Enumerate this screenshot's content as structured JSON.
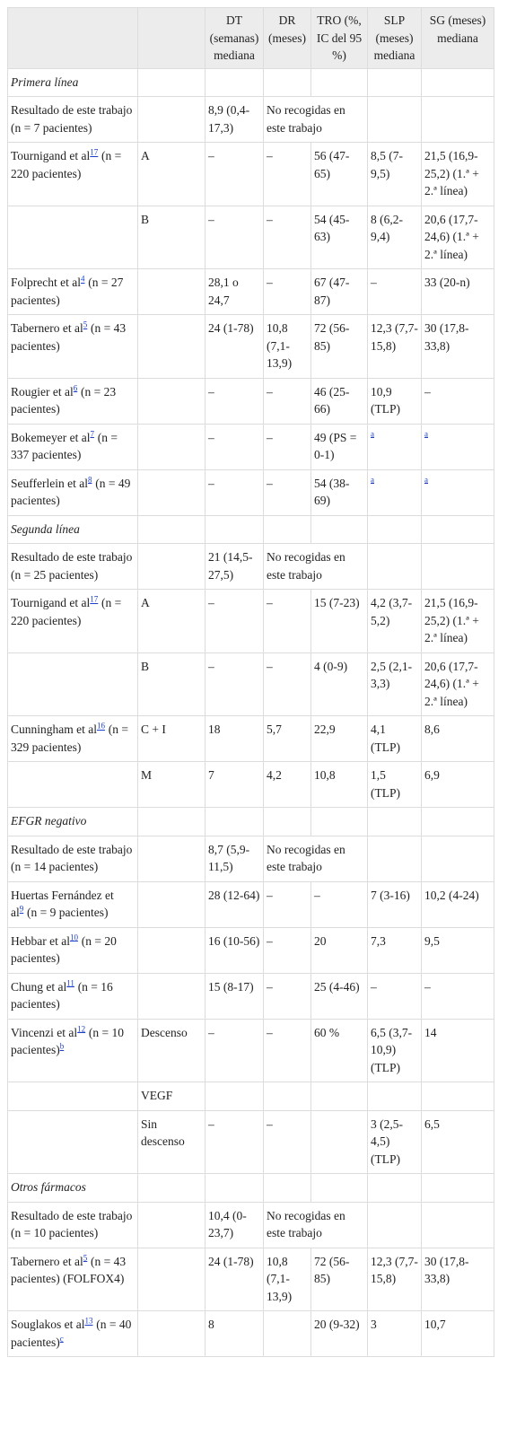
{
  "header": {
    "cols": [
      "DT (semanas) mediana",
      "DR (meses)",
      "TRO (%, IC del 95 %)",
      "SLP (meses) mediana",
      "SG (meses) mediana"
    ]
  },
  "rows": [
    {
      "section": "Primera línea"
    },
    {
      "study": "Resultado de este trabajo (n = 7 pacientes)",
      "dt": "8,9 (0,4-17,3)",
      "note": "No recogidas en este trabajo"
    },
    {
      "study": {
        "name": "Tournigand et al",
        "ref": "17",
        "detail": "(n = 220 pacientes)"
      },
      "arm": "A",
      "dt": "–",
      "dr": "–",
      "tro": "56 (47-65)",
      "slp": "8,5 (7-9,5)",
      "sg": "21,5 (16,9-25,2) (1.ª + 2.ª línea)"
    },
    {
      "arm": "B",
      "dt": "–",
      "dr": "–",
      "tro": "54 (45-63)",
      "slp": "8 (6,2-9,4)",
      "sg": "20,6 (17,7-24,6) (1.ª + 2.ª línea)"
    },
    {
      "study": {
        "name": "Folprecht et al",
        "ref": "4",
        "detail": "(n = 27 pacientes)"
      },
      "dt": "28,1 o 24,7",
      "dr": "–",
      "tro": "67 (47-87)",
      "slp": "–",
      "sg": "33 (20-n)"
    },
    {
      "study": {
        "name": "Tabernero et al",
        "ref": "5",
        "detail": "(n = 43 pacientes)"
      },
      "dt": "24 (1-78)",
      "dr": "10,8 (7,1-13,9)",
      "tro": "72 (56-85)",
      "slp": "12,3 (7,7-15,8)",
      "sg": "30 (17,8-33,8)"
    },
    {
      "study": {
        "name": "Rougier et al",
        "ref": "6",
        "detail": "(n = 23 pacientes)"
      },
      "dt": "–",
      "dr": "–",
      "tro": "46 (25-66)",
      "slp": "10,9 (TLP)",
      "sg": "–"
    },
    {
      "study": {
        "name": "Bokemeyer et al",
        "ref": "7",
        "detail": "(n = 337 pacientes)"
      },
      "dt": "–",
      "dr": "–",
      "tro": "49 (PS = 0-1)",
      "slp": {
        "ref": "a"
      },
      "sg": {
        "ref": "a"
      }
    },
    {
      "study": {
        "name": "Seufferlein et al",
        "ref": "8",
        "detail": "(n = 49 pacientes)"
      },
      "dt": "–",
      "dr": "–",
      "tro": "54 (38-69)",
      "slp": {
        "ref": "a"
      },
      "sg": {
        "ref": "a"
      }
    },
    {
      "section": "Segunda línea"
    },
    {
      "study": "Resultado de este trabajo (n = 25 pacientes)",
      "dt": "21 (14,5-27,5)",
      "note": "No recogidas en este trabajo"
    },
    {
      "study": {
        "name": "Tournigand et al",
        "ref": "17",
        "detail": "(n = 220 pacientes)"
      },
      "arm": "A",
      "dt": "–",
      "dr": "–",
      "tro": "15 (7-23)",
      "slp": "4,2 (3,7-5,2)",
      "sg": "21,5 (16,9-25,2) (1.ª + 2.ª línea)"
    },
    {
      "arm": "B",
      "dt": "–",
      "dr": "–",
      "tro": "4 (0-9)",
      "slp": "2,5 (2,1-3,3)",
      "sg": "20,6 (17,7-24,6) (1.ª + 2.ª línea)"
    },
    {
      "study": {
        "name": "Cunningham et al",
        "ref": "16",
        "detail": "(n = 329 pacientes)"
      },
      "arm": "C + I",
      "dt": "18",
      "dr": "5,7",
      "tro": "22,9",
      "slp": "4,1 (TLP)",
      "sg": "8,6"
    },
    {
      "arm": "M",
      "dt": "7",
      "dr": "4,2",
      "tro": "10,8",
      "slp": "1,5 (TLP)",
      "sg": "6,9"
    },
    {
      "section": "EFGR negativo"
    },
    {
      "study": "Resultado de este trabajo (n = 14 pacientes)",
      "dt": "8,7 (5,9-11,5)",
      "note": "No recogidas en este trabajo"
    },
    {
      "study": {
        "name": "Huertas Fernández et al",
        "ref": "9",
        "detail": "(n = 9 pacientes)"
      },
      "dt": "28 (12-64)",
      "dr": "–",
      "tro": "–",
      "slp": "7 (3-16)",
      "sg": "10,2 (4-24)"
    },
    {
      "study": {
        "name": "Hebbar et al",
        "ref": "10",
        "detail": "(n = 20 pacientes)"
      },
      "dt": "16 (10-56)",
      "dr": "–",
      "tro": "20",
      "slp": "7,3",
      "sg": "9,5"
    },
    {
      "study": {
        "name": "Chung et al",
        "ref": "11",
        "detail": "(n = 16 pacientes)"
      },
      "dt": "15 (8-17)",
      "dr": "–",
      "tro": "25 (4-46)",
      "slp": "–",
      "sg": "–"
    },
    {
      "study": {
        "name": "Vincenzi et al",
        "ref": "12",
        "detail": "(n = 10 pacientes)",
        "note_ref": "b"
      },
      "arm": "Descenso",
      "dt": "–",
      "dr": "–",
      "tro": "60 %",
      "slp": "6,5 (3,7-10,9) (TLP)",
      "sg": "14"
    },
    {
      "arm": "VEGF"
    },
    {
      "arm": "Sin descenso",
      "dt": "–",
      "dr": "–",
      "slp": "3 (2,5-4,5) (TLP)",
      "sg": "6,5"
    },
    {
      "section": "Otros fármacos"
    },
    {
      "study": "Resultado de este trabajo (n = 10 pacientes)",
      "dt": "10,4 (0-23,7)",
      "note": "No recogidas en este trabajo"
    },
    {
      "study": {
        "name": "Tabernero et al",
        "ref": "5",
        "detail": "(n = 43 pacientes) (FOLFOX4)"
      },
      "dt": "24 (1-78)",
      "dr": "10,8 (7,1-13,9)",
      "tro": "72 (56-85)",
      "slp": "12,3 (7,7-15,8)",
      "sg": "30 (17,8-33,8)"
    },
    {
      "study": {
        "name": "Souglakos et al",
        "ref": "13",
        "detail": "(n = 40 pacientes)",
        "note_ref": "c"
      },
      "dt": "8",
      "tro": "20 (9-32)",
      "slp": "3",
      "sg": "10,7"
    }
  ]
}
